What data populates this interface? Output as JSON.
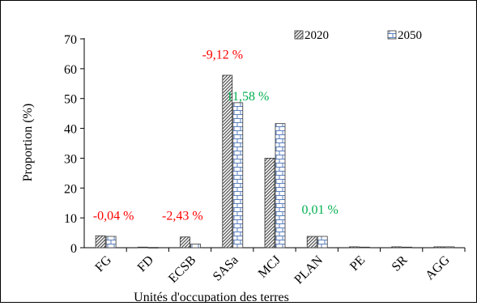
{
  "chart_data": {
    "type": "bar",
    "title": "",
    "xlabel": "Unités d'occupation des terres",
    "ylabel": "Proportion (%)",
    "ylim": [
      0,
      70
    ],
    "yticks": [
      0,
      10,
      20,
      30,
      40,
      50,
      60,
      70
    ],
    "grid": false,
    "legend_position": "top-right",
    "categories": [
      "FG",
      "FD",
      "ECSB",
      "SASa",
      "MCJ",
      "PLAN",
      "PE",
      "SR",
      "AGG"
    ],
    "series": [
      {
        "name": "2020",
        "values": [
          4.0,
          0.2,
          3.6,
          57.8,
          30.0,
          3.8,
          0.3,
          0.3,
          0.3
        ]
      },
      {
        "name": "2050",
        "values": [
          3.8,
          0.1,
          1.2,
          48.6,
          41.6,
          3.8,
          0.2,
          0.2,
          0.3
        ]
      }
    ],
    "annotations": [
      {
        "text": "-0,04 %",
        "color": "#ff0000"
      },
      {
        "text": "-2,43 %",
        "color": "#ff0000"
      },
      {
        "text": "-9,12 %",
        "color": "#ff0000"
      },
      {
        "text": "11,58 %",
        "color": "#00b050"
      },
      {
        "text": "0,01 %",
        "color": "#00b050"
      }
    ]
  }
}
